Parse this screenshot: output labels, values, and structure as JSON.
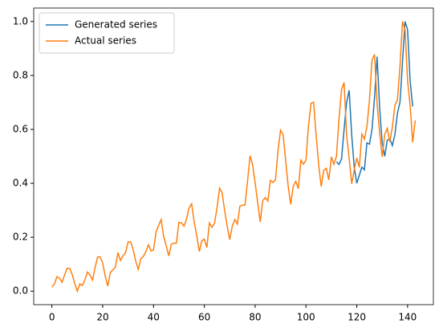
{
  "chart_data": {
    "type": "line",
    "series": [
      {
        "name": "Generated series",
        "color": "#1f77b4",
        "x": [
          112,
          113,
          114,
          115,
          116,
          117,
          118,
          119,
          120,
          121,
          122,
          123,
          124,
          125,
          126,
          127,
          128,
          129,
          130,
          131,
          132,
          133,
          134,
          135,
          136,
          137,
          138,
          139,
          140,
          141,
          142
        ],
        "values": [
          0.48,
          0.47,
          0.49,
          0.6,
          0.7,
          0.745,
          0.58,
          0.46,
          0.4,
          0.43,
          0.46,
          0.45,
          0.55,
          0.545,
          0.6,
          0.72,
          0.87,
          0.68,
          0.55,
          0.5,
          0.56,
          0.565,
          0.54,
          0.58,
          0.66,
          0.7,
          0.85,
          1.0,
          0.97,
          0.78,
          0.685
        ]
      },
      {
        "name": "Actual series",
        "color": "#ff7f0e",
        "x": [
          0,
          1,
          2,
          3,
          4,
          5,
          6,
          7,
          8,
          9,
          10,
          11,
          12,
          13,
          14,
          15,
          16,
          17,
          18,
          19,
          20,
          21,
          22,
          23,
          24,
          25,
          26,
          27,
          28,
          29,
          30,
          31,
          32,
          33,
          34,
          35,
          36,
          37,
          38,
          39,
          40,
          41,
          42,
          43,
          44,
          45,
          46,
          47,
          48,
          49,
          50,
          51,
          52,
          53,
          54,
          55,
          56,
          57,
          58,
          59,
          60,
          61,
          62,
          63,
          64,
          65,
          66,
          67,
          68,
          69,
          70,
          71,
          72,
          73,
          74,
          75,
          76,
          77,
          78,
          79,
          80,
          81,
          82,
          83,
          84,
          85,
          86,
          87,
          88,
          89,
          90,
          91,
          92,
          93,
          94,
          95,
          96,
          97,
          98,
          99,
          100,
          101,
          102,
          103,
          104,
          105,
          106,
          107,
          108,
          109,
          110,
          111,
          112,
          113,
          114,
          115,
          116,
          117,
          118,
          119,
          120,
          121,
          122,
          123,
          124,
          125,
          126,
          127,
          128,
          129,
          130,
          131,
          132,
          133,
          134,
          135,
          136,
          137,
          138,
          139,
          140,
          141,
          142,
          143
        ],
        "values": [
          0.015,
          0.027,
          0.054,
          0.048,
          0.033,
          0.06,
          0.085,
          0.085,
          0.062,
          0.029,
          0,
          0.027,
          0.021,
          0.042,
          0.071,
          0.06,
          0.041,
          0.087,
          0.127,
          0.127,
          0.104,
          0.056,
          0.019,
          0.069,
          0.079,
          0.089,
          0.143,
          0.114,
          0.131,
          0.143,
          0.183,
          0.183,
          0.154,
          0.112,
          0.081,
          0.12,
          0.129,
          0.147,
          0.172,
          0.149,
          0.153,
          0.22,
          0.243,
          0.266,
          0.203,
          0.168,
          0.131,
          0.174,
          0.178,
          0.178,
          0.255,
          0.253,
          0.241,
          0.268,
          0.309,
          0.324,
          0.257,
          0.207,
          0.147,
          0.187,
          0.193,
          0.162,
          0.253,
          0.237,
          0.251,
          0.309,
          0.382,
          0.365,
          0.299,
          0.241,
          0.191,
          0.241,
          0.266,
          0.249,
          0.315,
          0.319,
          0.32,
          0.407,
          0.502,
          0.469,
          0.402,
          0.328,
          0.257,
          0.336,
          0.347,
          0.334,
          0.411,
          0.403,
          0.413,
          0.521,
          0.597,
          0.581,
          0.485,
          0.39,
          0.322,
          0.39,
          0.407,
          0.38,
          0.486,
          0.471,
          0.485,
          0.614,
          0.697,
          0.701,
          0.579,
          0.469,
          0.388,
          0.448,
          0.456,
          0.413,
          0.498,
          0.471,
          0.5,
          0.639,
          0.747,
          0.774,
          0.579,
          0.492,
          0.398,
          0.45,
          0.494,
          0.459,
          0.583,
          0.564,
          0.61,
          0.71,
          0.857,
          0.878,
          0.693,
          0.585,
          0.498,
          0.581,
          0.604,
          0.554,
          0.608,
          0.689,
          0.71,
          0.832,
          1.0,
          0.969,
          0.78,
          0.689,
          0.552,
          0.633
        ]
      }
    ],
    "xlim": [
      -7.15,
      150.15
    ],
    "xticks": [
      0,
      20,
      40,
      60,
      80,
      100,
      120,
      140
    ],
    "ylim": [
      -0.05,
      1.05
    ],
    "yticks": [
      {
        "value": 0,
        "label": "0.0"
      },
      {
        "value": 0.2,
        "label": "0.2"
      },
      {
        "value": 0.4,
        "label": "0.4"
      },
      {
        "value": 0.6,
        "label": "0.6"
      },
      {
        "value": 0.8,
        "label": "0.8"
      },
      {
        "value": 1,
        "label": "1.0"
      }
    ],
    "legend": "upper left"
  }
}
